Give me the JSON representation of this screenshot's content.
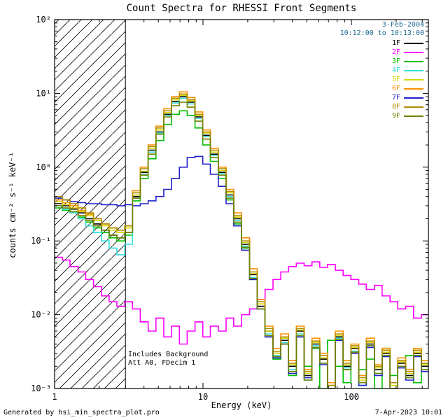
{
  "footer": {
    "generated_by": "Generated by hsi_min_spectra_plot.pro",
    "timestamp": "7-Apr-2023 10:01"
  },
  "chart_data": {
    "type": "line",
    "style": "log-log step histogram spectra",
    "title": "Count Spectra for RHESSI Front Segments",
    "xlabel": "Energy (keV)",
    "ylabel": "counts cm⁻² s⁻¹ keV⁻¹",
    "xlim": [
      1,
      330
    ],
    "ylim": [
      0.001,
      100
    ],
    "xscale": "log",
    "yscale": "log",
    "grid": false,
    "legend_position": "upper right inside",
    "annotation_color": "#1e6a8e",
    "hatch_region": {
      "from": 1,
      "to": 3
    },
    "annotations": {
      "date": "3-Feb-2004",
      "time_range": "10:12:00 to 10:13:00",
      "background_note": "Includes Background",
      "attenuator_note": "Att A0, FDecim 1"
    },
    "x_ticks": [
      {
        "value": 1,
        "label": "1"
      },
      {
        "value": 10,
        "label": "10"
      },
      {
        "value": 100,
        "label": "100"
      }
    ],
    "y_ticks": [
      {
        "value": 0.001,
        "label": "10⁻³"
      },
      {
        "value": 0.01,
        "label": "10⁻²"
      },
      {
        "value": 0.1,
        "label": "10⁻¹"
      },
      {
        "value": 1,
        "label": "10⁰"
      },
      {
        "value": 10,
        "label": "10¹"
      },
      {
        "value": 100,
        "label": "10²"
      }
    ],
    "x": [
      1.0,
      1.13,
      1.27,
      1.44,
      1.62,
      1.83,
      2.07,
      2.33,
      2.63,
      2.97,
      3.35,
      3.78,
      4.27,
      4.82,
      5.44,
      6.14,
      6.93,
      7.82,
      8.83,
      9.96,
      11.2,
      12.7,
      14.3,
      16.1,
      18.2,
      20.6,
      23.2,
      26.2,
      29.6,
      33.4,
      37.7,
      42.5,
      48.0,
      54.2,
      61.2,
      69.0,
      77.9,
      87.9,
      99.2,
      112,
      126,
      143,
      161,
      182,
      205,
      232,
      262,
      296
    ],
    "series": [
      {
        "name": "1F",
        "color": "#000000",
        "y": [
          0.32,
          0.3,
          0.27,
          0.24,
          0.2,
          0.17,
          0.14,
          0.12,
          0.11,
          0.13,
          0.4,
          0.85,
          1.7,
          3.0,
          5.2,
          7.8,
          9.0,
          7.6,
          4.8,
          2.7,
          1.5,
          0.85,
          0.42,
          0.2,
          0.09,
          0.035,
          0.013,
          0.006,
          0.003,
          0.0045,
          0.002,
          0.006,
          0.0015,
          0.004,
          0.0025,
          0.001,
          0.005,
          0.002,
          0.0035,
          0.0012,
          0.004,
          0.0018,
          0.003,
          0.001,
          0.0022,
          0.0015,
          0.003,
          0.002
        ]
      },
      {
        "name": "2F",
        "color": "#ff00ff",
        "y": [
          0.06,
          0.055,
          0.045,
          0.038,
          0.03,
          0.024,
          0.018,
          0.015,
          0.013,
          0.015,
          0.012,
          0.008,
          0.006,
          0.009,
          0.005,
          0.007,
          0.004,
          0.006,
          0.008,
          0.005,
          0.007,
          0.006,
          0.009,
          0.007,
          0.01,
          0.012,
          0.016,
          0.022,
          0.03,
          0.038,
          0.045,
          0.05,
          0.046,
          0.052,
          0.044,
          0.048,
          0.04,
          0.034,
          0.03,
          0.026,
          0.022,
          0.025,
          0.018,
          0.015,
          0.012,
          0.013,
          0.009,
          0.01
        ]
      },
      {
        "name": "3F",
        "color": "#00c000",
        "y": [
          0.28,
          0.26,
          0.24,
          0.21,
          0.18,
          0.15,
          0.13,
          0.11,
          0.1,
          0.12,
          0.35,
          0.7,
          1.3,
          2.3,
          3.8,
          5.2,
          5.8,
          5.0,
          3.4,
          2.0,
          1.2,
          0.7,
          0.36,
          0.17,
          0.08,
          0.03,
          0.012,
          0.005,
          0.0025,
          0.004,
          0.0015,
          0.005,
          0.002,
          0.0035,
          0.001,
          0.0045,
          0.002,
          0.0012,
          0.003,
          0.0018,
          0.0025,
          0.001,
          0.0035,
          0.0015,
          0.002,
          0.0028,
          0.0012,
          0.0022
        ]
      },
      {
        "name": "4F",
        "color": "#33dddd",
        "y": [
          0.3,
          0.27,
          0.24,
          0.2,
          0.16,
          0.13,
          0.1,
          0.08,
          0.065,
          0.09,
          0.38,
          0.8,
          1.6,
          2.9,
          5.0,
          7.4,
          8.6,
          7.2,
          4.6,
          2.6,
          1.45,
          0.82,
          0.4,
          0.19,
          0.085,
          0.032,
          0.012,
          0.0055,
          0.0028,
          0.0042,
          0.0018,
          0.0055,
          0.0013,
          0.0038,
          0.0022,
          0.001,
          0.0048,
          0.0019,
          0.0032,
          0.0011,
          0.0038,
          0.0016,
          0.0028,
          0.001,
          0.002,
          0.0014,
          0.0028,
          0.0018
        ]
      },
      {
        "name": "5F",
        "color": "#d8d800",
        "y": [
          0.34,
          0.31,
          0.28,
          0.25,
          0.22,
          0.19,
          0.16,
          0.14,
          0.13,
          0.15,
          0.42,
          0.88,
          1.8,
          3.2,
          5.5,
          8.2,
          9.4,
          7.9,
          5.0,
          2.9,
          1.6,
          0.9,
          0.45,
          0.21,
          0.095,
          0.036,
          0.014,
          0.006,
          0.003,
          0.0048,
          0.0021,
          0.0062,
          0.0016,
          0.0042,
          0.0026,
          0.0011,
          0.0052,
          0.0021,
          0.0036,
          0.0013,
          0.0042,
          0.0019,
          0.0031,
          0.0011,
          0.0023,
          0.0016,
          0.0031,
          0.0021
        ]
      },
      {
        "name": "6F",
        "color": "#ff9000",
        "y": [
          0.36,
          0.33,
          0.3,
          0.26,
          0.23,
          0.2,
          0.17,
          0.15,
          0.14,
          0.16,
          0.48,
          1.0,
          2.0,
          3.6,
          6.2,
          9.0,
          10.5,
          8.8,
          5.6,
          3.2,
          1.8,
          1.0,
          0.5,
          0.24,
          0.11,
          0.042,
          0.016,
          0.007,
          0.0035,
          0.0055,
          0.0024,
          0.007,
          0.0018,
          0.0048,
          0.003,
          0.0012,
          0.006,
          0.0024,
          0.004,
          0.0015,
          0.0048,
          0.0021,
          0.0035,
          0.0012,
          0.0026,
          0.0018,
          0.0035,
          0.0024
        ]
      },
      {
        "name": "7F",
        "color": "#2020cc",
        "y": [
          0.38,
          0.36,
          0.34,
          0.33,
          0.32,
          0.32,
          0.31,
          0.31,
          0.3,
          0.31,
          0.3,
          0.32,
          0.35,
          0.4,
          0.5,
          0.7,
          1.0,
          1.35,
          1.4,
          1.1,
          0.8,
          0.55,
          0.32,
          0.16,
          0.075,
          0.03,
          0.012,
          0.005,
          0.0026,
          0.004,
          0.0016,
          0.005,
          0.0014,
          0.0036,
          0.0021,
          0.001,
          0.0045,
          0.0018,
          0.003,
          0.0011,
          0.0036,
          0.0015,
          0.0027,
          0.001,
          0.0019,
          0.0013,
          0.0027,
          0.0017
        ]
      },
      {
        "name": "8F",
        "color": "#b08c00",
        "y": [
          0.4,
          0.36,
          0.32,
          0.28,
          0.24,
          0.2,
          0.17,
          0.15,
          0.14,
          0.16,
          0.45,
          0.95,
          1.9,
          3.4,
          5.8,
          8.6,
          9.8,
          8.2,
          5.2,
          3.0,
          1.7,
          0.95,
          0.47,
          0.22,
          0.1,
          0.038,
          0.015,
          0.0065,
          0.0032,
          0.005,
          0.0022,
          0.0065,
          0.0017,
          0.0044,
          0.0028,
          0.0011,
          0.0055,
          0.0022,
          0.0038,
          0.0014,
          0.0044,
          0.002,
          0.0033,
          0.0012,
          0.0024,
          0.0017,
          0.0033,
          0.0022
        ]
      },
      {
        "name": "9F",
        "color": "#708000",
        "y": [
          0.3,
          0.28,
          0.25,
          0.22,
          0.19,
          0.16,
          0.14,
          0.12,
          0.11,
          0.13,
          0.38,
          0.78,
          1.5,
          2.8,
          4.8,
          6.8,
          7.6,
          6.5,
          4.2,
          2.4,
          1.35,
          0.78,
          0.38,
          0.18,
          0.082,
          0.031,
          0.012,
          0.0052,
          0.0027,
          0.004,
          0.0017,
          0.0052,
          0.0013,
          0.0036,
          0.0022,
          0.001,
          0.0046,
          0.0018,
          0.0031,
          0.0012,
          0.0038,
          0.0016,
          0.0028,
          0.001,
          0.002,
          0.0014,
          0.0028,
          0.0018
        ]
      }
    ]
  }
}
